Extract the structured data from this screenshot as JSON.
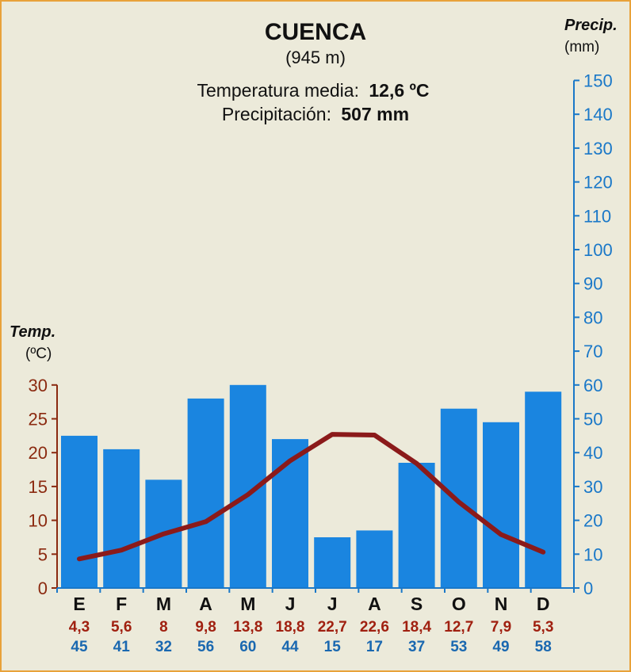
{
  "chart_data": {
    "type": "climograph",
    "title": "CUENCA",
    "subtitle": "(945 m)",
    "summary": [
      {
        "label": "Temperatura media:",
        "value": "12,6 ºC"
      },
      {
        "label": "Precipitación:",
        "value": "507 mm"
      }
    ],
    "left_axis": {
      "label": "Temp.",
      "unit": "(ºC)",
      "range": [
        0,
        30
      ],
      "ticks": [
        0,
        5,
        10,
        15,
        20,
        25,
        30
      ]
    },
    "right_axis": {
      "label": "Precip.",
      "unit": "(mm)",
      "range": [
        0,
        150
      ],
      "ticks": [
        0,
        10,
        20,
        30,
        40,
        50,
        60,
        70,
        80,
        90,
        100,
        110,
        120,
        130,
        140,
        150
      ]
    },
    "categories": [
      "E",
      "F",
      "M",
      "A",
      "M",
      "J",
      "J",
      "A",
      "S",
      "O",
      "N",
      "D"
    ],
    "temperature": {
      "values": [
        4.3,
        5.6,
        8,
        9.8,
        13.8,
        18.8,
        22.7,
        22.6,
        18.4,
        12.7,
        7.9,
        5.3
      ],
      "labels": [
        "4,3",
        "5,6",
        "8",
        "9,8",
        "13,8",
        "18,8",
        "22,7",
        "22,6",
        "18,4",
        "12,7",
        "7,9",
        "5,3"
      ]
    },
    "precipitation": {
      "values": [
        45,
        41,
        32,
        56,
        60,
        44,
        15,
        17,
        37,
        53,
        49,
        58
      ],
      "labels": [
        "45",
        "41",
        "32",
        "56",
        "60",
        "44",
        "15",
        "17",
        "37",
        "53",
        "49",
        "58"
      ]
    },
    "colors": {
      "bars": "#1a85e0",
      "line": "#8b1a1a",
      "temp_axis": "#8b2a10",
      "precip_axis": "#1a78c8",
      "temp_labels": "#a02010",
      "precip_labels": "#1a68b0",
      "text": "#111111"
    }
  }
}
